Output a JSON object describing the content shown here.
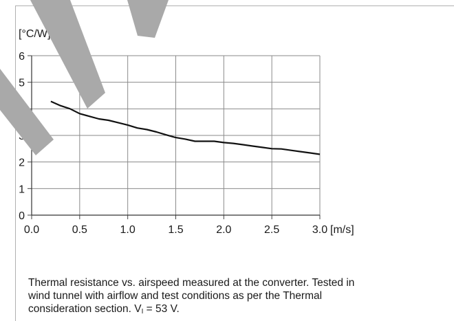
{
  "chart_data": {
    "type": "line",
    "title": "",
    "xlabel": "[m/s]",
    "ylabel": "[°C/W]",
    "xlim": [
      0.0,
      3.0
    ],
    "ylim": [
      0,
      6
    ],
    "x_ticks": [
      "0.0",
      "0.5",
      "1.0",
      "1.5",
      "2.0",
      "2.5",
      "3.0"
    ],
    "y_ticks": [
      "0",
      "1",
      "2",
      "3",
      "4",
      "5",
      "6"
    ],
    "grid": true,
    "legend": "none",
    "series": [
      {
        "color": "#111111",
        "points": [
          [
            0.2,
            4.28
          ],
          [
            0.3,
            4.12
          ],
          [
            0.4,
            4.0
          ],
          [
            0.5,
            3.82
          ],
          [
            0.6,
            3.72
          ],
          [
            0.7,
            3.62
          ],
          [
            0.8,
            3.57
          ],
          [
            0.9,
            3.48
          ],
          [
            1.0,
            3.39
          ],
          [
            1.1,
            3.28
          ],
          [
            1.2,
            3.22
          ],
          [
            1.3,
            3.13
          ],
          [
            1.4,
            3.02
          ],
          [
            1.5,
            2.92
          ],
          [
            1.6,
            2.86
          ],
          [
            1.7,
            2.78
          ],
          [
            1.8,
            2.78
          ],
          [
            1.9,
            2.78
          ],
          [
            2.0,
            2.73
          ],
          [
            2.1,
            2.7
          ],
          [
            2.2,
            2.65
          ],
          [
            2.3,
            2.6
          ],
          [
            2.4,
            2.55
          ],
          [
            2.5,
            2.5
          ],
          [
            2.6,
            2.49
          ],
          [
            2.7,
            2.44
          ],
          [
            2.8,
            2.39
          ],
          [
            2.9,
            2.34
          ],
          [
            3.0,
            2.29
          ]
        ]
      }
    ]
  },
  "caption": {
    "line1": "Thermal resistance vs. airspeed measured at the converter. Tested in",
    "line2": "wind tunnel with airflow and test conditions as per the Thermal",
    "line3_prefix": "consideration section. V",
    "line3_sub": "I",
    "line3_suffix": " = 53 V."
  }
}
